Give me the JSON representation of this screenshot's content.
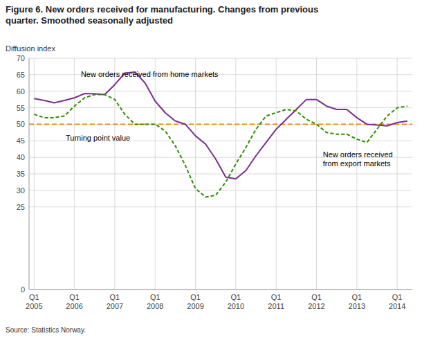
{
  "chart_data": {
    "type": "line",
    "title": "Figure 6. New orders received for manufacturing. Changes from previous\nquarter. Smoothed seasonally adjusted",
    "y_label": "Diffusion index",
    "source": "Source: Statistics Norway.",
    "categories": [
      "Q1\n2005",
      null,
      null,
      null,
      "Q1\n2006",
      null,
      null,
      null,
      "Q1\n2007",
      null,
      null,
      null,
      "Q1\n2008",
      null,
      null,
      null,
      "Q1\n2009",
      null,
      null,
      null,
      "Q1\n2010",
      null,
      null,
      null,
      "Q1\n2011",
      null,
      null,
      null,
      "Q1\n2012",
      null,
      null,
      null,
      "Q1\n2013",
      null,
      null,
      null,
      "Q1\n2014",
      null
    ],
    "series": [
      {
        "color": "#7b2d8b",
        "line_style": "solid",
        "values": [
          57.8,
          57.2,
          56.5,
          57.2,
          58.0,
          59.3,
          59.2,
          59.0,
          62.0,
          65.5,
          65.8,
          62.5,
          57.0,
          53.5,
          51.0,
          50.0,
          46.5,
          44.0,
          39.5,
          34.0,
          33.5,
          36.0,
          40.5,
          44.5,
          48.5,
          51.5,
          54.5,
          57.5,
          57.5,
          55.5,
          54.5,
          54.5,
          52.0,
          50.0,
          49.8,
          49.5,
          50.5,
          51.0
        ]
      },
      {
        "color": "#2e8b00",
        "line_style": "dashed",
        "values": [
          53.0,
          52.0,
          52.0,
          52.5,
          55.5,
          58.0,
          59.0,
          59.0,
          57.5,
          53.0,
          50.0,
          50.0,
          50.0,
          48.0,
          43.5,
          37.5,
          30.5,
          28.0,
          28.5,
          32.5,
          38.0,
          43.0,
          48.5,
          52.5,
          53.5,
          54.5,
          54.0,
          51.5,
          50.0,
          47.5,
          47.0,
          47.0,
          45.5,
          44.5,
          48.5,
          52.5,
          55.0,
          55.5
        ]
      }
    ],
    "reference_lines": [
      {
        "value": 50,
        "color": "#f0820a",
        "line_style": "dashed"
      }
    ],
    "annotations": [
      {
        "text": "New orders received from home markets",
        "x": 4.5,
        "y": 63.5
      },
      {
        "text": "New orders received\nfrom export markets",
        "x": 28.5,
        "y": 42.5
      },
      {
        "text": "Turning point value",
        "x": 3.0,
        "y": 47.5
      }
    ],
    "ylim": [
      0,
      70
    ],
    "yticks": [
      0,
      25,
      30,
      35,
      40,
      45,
      50,
      55,
      60,
      65,
      70
    ],
    "grid": true
  }
}
